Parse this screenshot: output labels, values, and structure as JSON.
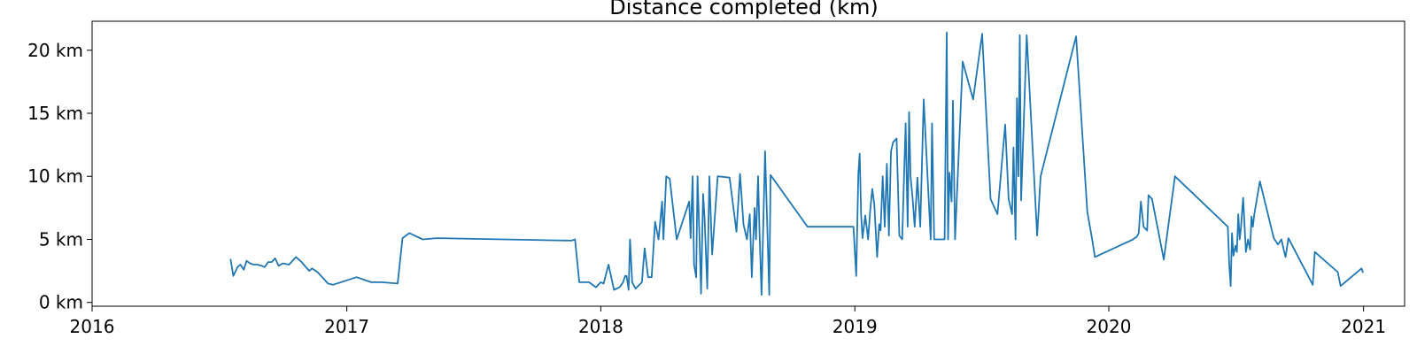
{
  "chart_data": {
    "type": "line",
    "title": "Distance completed (km)",
    "xlabel": "",
    "ylabel": "",
    "x_type": "date",
    "xlim": [
      "2016-01-01",
      "2021-03-01"
    ],
    "ylim": [
      -0.3,
      22.3
    ],
    "grid": false,
    "x_ticks": [
      {
        "value": "2016-01-01",
        "label": "2016"
      },
      {
        "value": "2017-01-01",
        "label": "2017"
      },
      {
        "value": "2018-01-01",
        "label": "2018"
      },
      {
        "value": "2019-01-01",
        "label": "2019"
      },
      {
        "value": "2020-01-01",
        "label": "2020"
      },
      {
        "value": "2021-01-01",
        "label": "2021"
      }
    ],
    "y_ticks": [
      {
        "value": 0,
        "label": "0 km"
      },
      {
        "value": 5,
        "label": "5 km"
      },
      {
        "value": 10,
        "label": "10 km"
      },
      {
        "value": 15,
        "label": "15 km"
      },
      {
        "value": 20,
        "label": "20 km"
      }
    ],
    "series": [
      {
        "color": "#1f77b4",
        "x": [
          "2016-07-18",
          "2016-07-22",
          "2016-07-28",
          "2016-08-01",
          "2016-08-06",
          "2016-08-10",
          "2016-08-15",
          "2016-08-20",
          "2016-08-25",
          "2016-09-01",
          "2016-09-05",
          "2016-09-10",
          "2016-09-15",
          "2016-09-20",
          "2016-09-25",
          "2016-10-01",
          "2016-10-10",
          "2016-10-20",
          "2016-10-28",
          "2016-11-08",
          "2016-11-12",
          "2016-11-20",
          "2016-11-30",
          "2016-12-05",
          "2016-12-12",
          "2017-01-15",
          "2017-02-05",
          "2017-02-15",
          "2017-02-20",
          "2017-03-15",
          "2017-03-22",
          "2017-04-01",
          "2017-04-20",
          "2017-05-10",
          "2017-11-20",
          "2017-11-25",
          "2017-12-01",
          "2017-12-10",
          "2017-12-15",
          "2017-12-25",
          "2018-01-01",
          "2018-01-05",
          "2018-01-12",
          "2018-01-20",
          "2018-01-28",
          "2018-02-02",
          "2018-02-05",
          "2018-02-07",
          "2018-02-10",
          "2018-02-12",
          "2018-02-15",
          "2018-02-20",
          "2018-03-01",
          "2018-03-05",
          "2018-03-10",
          "2018-03-15",
          "2018-03-20",
          "2018-03-25",
          "2018-03-30",
          "2018-04-01",
          "2018-04-05",
          "2018-04-10",
          "2018-04-20",
          "2018-05-08",
          "2018-05-10",
          "2018-05-13",
          "2018-05-15",
          "2018-05-18",
          "2018-05-20",
          "2018-05-23",
          "2018-05-25",
          "2018-05-28",
          "2018-05-30",
          "2018-06-03",
          "2018-06-06",
          "2018-06-10",
          "2018-06-18",
          "2018-07-05",
          "2018-07-15",
          "2018-07-20",
          "2018-07-25",
          "2018-07-30",
          "2018-08-03",
          "2018-08-06",
          "2018-08-08",
          "2018-08-10",
          "2018-08-12",
          "2018-08-15",
          "2018-08-17",
          "2018-08-20",
          "2018-08-25",
          "2018-08-31",
          "2018-09-02",
          "2018-10-25",
          "2018-12-30",
          "2019-01-03",
          "2019-01-06",
          "2019-01-08",
          "2019-01-10",
          "2019-01-12",
          "2019-01-16",
          "2019-01-20",
          "2019-01-23",
          "2019-01-26",
          "2019-01-29",
          "2019-02-02",
          "2019-02-05",
          "2019-02-07",
          "2019-02-10",
          "2019-02-13",
          "2019-02-16",
          "2019-02-19",
          "2019-02-22",
          "2019-02-25",
          "2019-03-02",
          "2019-03-06",
          "2019-03-10",
          "2019-03-15",
          "2019-03-18",
          "2019-03-20",
          "2019-03-22",
          "2019-03-25",
          "2019-03-28",
          "2019-04-01",
          "2019-04-05",
          "2019-04-10",
          "2019-04-20",
          "2019-04-22",
          "2019-04-25",
          "2019-05-05",
          "2019-05-10",
          "2019-05-13",
          "2019-05-15",
          "2019-05-17",
          "2019-05-20",
          "2019-05-22",
          "2019-05-25",
          "2019-06-05",
          "2019-06-20",
          "2019-07-03",
          "2019-07-15",
          "2019-07-25",
          "2019-08-05",
          "2019-08-10",
          "2019-08-15",
          "2019-08-17",
          "2019-08-20",
          "2019-08-22",
          "2019-08-24",
          "2019-08-26",
          "2019-08-28",
          "2019-09-05",
          "2019-09-20",
          "2019-09-25",
          "2019-11-15",
          "2019-12-01",
          "2019-12-08",
          "2019-12-12",
          "2020-02-05",
          "2020-02-07",
          "2020-02-10",
          "2020-02-13",
          "2020-02-16",
          "2020-02-20",
          "2020-02-25",
          "2020-02-27",
          "2020-03-03",
          "2020-03-20",
          "2020-04-05",
          "2020-06-20",
          "2020-06-22",
          "2020-06-24",
          "2020-06-26",
          "2020-06-28",
          "2020-07-01",
          "2020-07-03",
          "2020-07-05",
          "2020-07-07",
          "2020-07-09",
          "2020-07-12",
          "2020-07-16",
          "2020-07-19",
          "2020-07-22",
          "2020-07-24",
          "2020-07-26",
          "2020-07-28",
          "2020-08-05",
          "2020-08-25",
          "2020-08-31",
          "2020-09-05",
          "2020-09-09",
          "2020-09-11",
          "2020-09-15",
          "2020-10-20",
          "2020-10-23",
          "2020-11-25",
          "2020-11-29",
          "2020-12-29",
          "2020-12-31"
        ],
        "y": [
          3.4,
          2.1,
          2.8,
          3.0,
          2.6,
          3.3,
          3.1,
          3.0,
          3.0,
          2.9,
          2.8,
          3.2,
          3.2,
          3.5,
          2.9,
          3.1,
          3.0,
          3.6,
          3.2,
          2.5,
          2.7,
          2.4,
          1.8,
          1.5,
          1.4,
          2.0,
          1.6,
          1.6,
          1.6,
          1.5,
          5.1,
          5.5,
          5.0,
          5.1,
          4.9,
          5.0,
          1.6,
          1.6,
          1.6,
          1.2,
          1.6,
          1.5,
          3.0,
          1.0,
          1.2,
          1.6,
          2.1,
          2.1,
          1.0,
          5.0,
          1.6,
          1.1,
          1.6,
          4.3,
          2.0,
          2.0,
          6.4,
          5.0,
          8.0,
          5.0,
          10.0,
          9.8,
          5.0,
          8.0,
          5.1,
          10.0,
          3.0,
          2.0,
          10.0,
          4.8,
          0.7,
          8.6,
          6.8,
          1.1,
          10.0,
          3.8,
          10.0,
          9.9,
          5.6,
          10.2,
          6.2,
          5.0,
          7.0,
          2.0,
          5.0,
          7.5,
          5.0,
          10.0,
          5.6,
          0.6,
          12.0,
          0.6,
          10.1,
          6.0,
          6.0,
          2.1,
          10.2,
          11.8,
          7.0,
          5.1,
          6.9,
          5.0,
          7.2,
          9.0,
          7.8,
          3.6,
          6.2,
          5.7,
          10.0,
          6.0,
          11.0,
          5.3,
          12.0,
          12.7,
          13.0,
          5.3,
          5.0,
          14.2,
          6.0,
          15.1,
          10.0,
          8.3,
          6.0,
          9.9,
          6.0,
          16.1,
          5.0,
          14.2,
          5.0,
          5.0,
          5.0,
          21.4,
          5.0,
          10.3,
          8.0,
          16.0,
          5.0,
          19.1,
          16.1,
          21.3,
          8.2,
          7.0,
          14.1,
          8.2,
          7.0,
          12.3,
          5.0,
          16.2,
          10.0,
          21.2,
          8.1,
          21.2,
          5.3,
          10.0,
          21.1,
          7.2,
          5.0,
          3.6,
          5.0,
          5.1,
          5.2,
          5.5,
          8.0,
          6.0,
          5.7,
          8.5,
          8.2,
          3.4,
          10.0,
          6.0,
          3.0,
          1.3,
          5.5,
          3.7,
          4.5,
          4.0,
          7.0,
          5.0,
          6.0,
          8.3,
          4.0,
          5.0,
          4.2,
          6.8,
          6.0,
          7.0,
          9.6,
          5.1,
          4.6,
          5.0,
          4.0,
          3.6,
          5.1,
          1.4,
          4.0,
          2.4,
          1.3,
          2.7,
          2.4
        ]
      }
    ]
  }
}
